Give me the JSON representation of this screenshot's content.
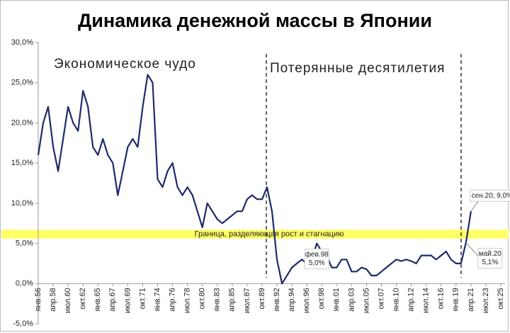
{
  "chart_data": {
    "type": "line",
    "title": "Динамика денежной массы в Японии",
    "regions": [
      {
        "text": "Экономическое чудо",
        "color": "#1fa84a"
      },
      {
        "text": "Потерянные десятилетия",
        "color": "#e0161b"
      }
    ],
    "band": {
      "text": "Граница,  разделяющая  рост  и  стагнацию",
      "range": [
        5.6,
        6.7
      ],
      "color": "#ffff66"
    },
    "categories": [
      "янв.56",
      null,
      null,
      "апр.58",
      null,
      null,
      "июл.60",
      null,
      null,
      "окт.62",
      null,
      null,
      "янв.65",
      null,
      null,
      "апр.67",
      null,
      null,
      "июл.69",
      null,
      null,
      "окт.71",
      null,
      null,
      "янв.74",
      null,
      null,
      "апр.76",
      null,
      null,
      "июл.78",
      null,
      null,
      "окт.80",
      null,
      null,
      "янв.83",
      null,
      null,
      "апр.85",
      null,
      null,
      "июл.87",
      null,
      null,
      "окт.89",
      null,
      null,
      "янв.92",
      null,
      null,
      "апр.94",
      null,
      null,
      "июл.96",
      null,
      null,
      "окт.98",
      null,
      null,
      "янв.01",
      null,
      null,
      "апр.03",
      null,
      null,
      "июл.05",
      null,
      null,
      "окт.07",
      null,
      null,
      "янв.10",
      null,
      null,
      "апр.12",
      null,
      null,
      "июл.14",
      null,
      null,
      "окт.16",
      null,
      null,
      "янв.19",
      null,
      null,
      "апр.21",
      null,
      null,
      "июл.23",
      null,
      null,
      "окт.25"
    ],
    "series": [
      {
        "color": "#1f2a6b",
        "values": [
          16,
          20,
          22,
          17,
          14,
          18,
          22,
          20,
          19,
          24,
          22,
          17,
          16,
          18,
          16,
          15,
          11,
          14,
          17,
          18,
          17,
          22,
          26,
          25,
          13,
          12,
          14,
          15,
          12,
          11,
          12,
          11,
          9,
          7,
          10,
          9,
          8,
          7.5,
          8,
          8.5,
          9,
          9,
          10.5,
          11,
          10.5,
          10.5,
          12,
          9,
          3,
          0,
          1,
          2,
          2.5,
          3,
          2.5,
          3,
          5.0,
          4,
          3.5,
          2,
          2,
          3,
          3,
          1.5,
          1.5,
          2,
          1.8,
          1,
          1,
          1.5,
          2,
          2.5,
          3,
          2.8,
          3,
          2.8,
          2.5,
          3.5,
          3.5,
          3.5,
          3,
          3.5,
          4,
          3,
          2.5,
          2.5,
          5.1,
          9.0,
          null,
          null,
          null,
          null,
          null,
          null
        ]
      }
    ],
    "annotations": [
      {
        "index": 56,
        "lines": [
          "фев.98",
          "5,0%"
        ]
      },
      {
        "index": 87,
        "lines": [
          "сен.20; 9,0%"
        ]
      },
      {
        "index": 86,
        "lines": [
          "май.20",
          "5,1%"
        ]
      }
    ],
    "ylim": [
      -5,
      30
    ],
    "yticks": [
      {
        "value": -5,
        "label": "-5,0%"
      },
      {
        "value": 0,
        "label": "0,0%"
      },
      {
        "value": 5,
        "label": "5,0%"
      },
      {
        "value": 10,
        "label": "10,0%"
      },
      {
        "value": 15,
        "label": "15,0%"
      },
      {
        "value": 20,
        "label": "20,0%"
      },
      {
        "value": 25,
        "label": "25,0%"
      },
      {
        "value": 30,
        "label": "30,0%"
      }
    ]
  }
}
